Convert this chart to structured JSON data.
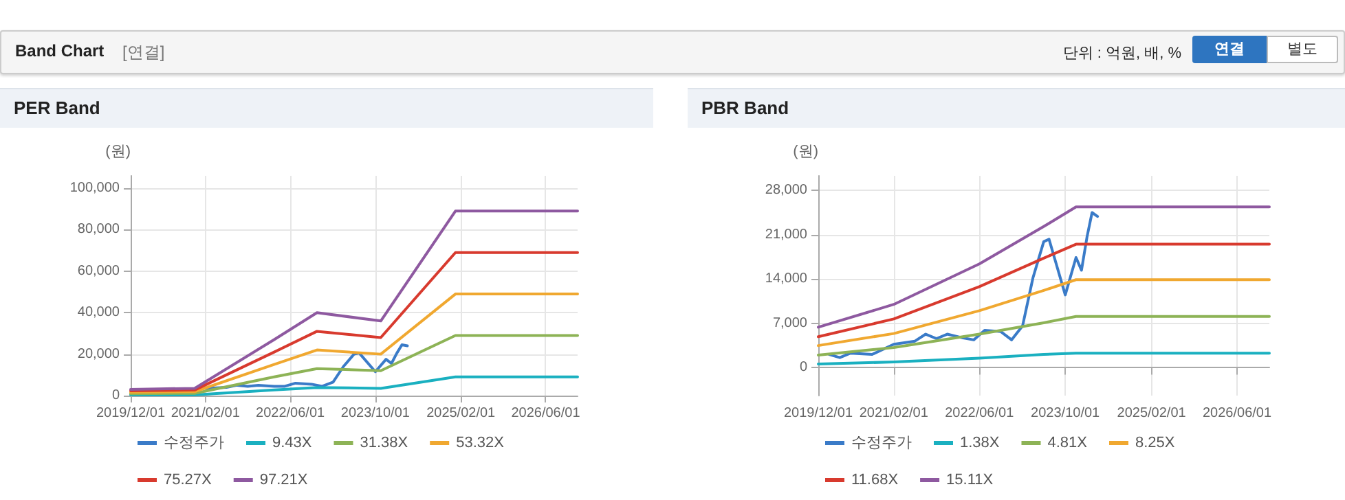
{
  "chart_data": [
    {
      "type": "line",
      "title": "PER Band",
      "ylabel": "(원)",
      "annotations": [
        "Band Chart",
        "[연결]",
        "단위 : 억원, 배, %",
        "연결",
        "별도"
      ],
      "xlim": [
        "2019-12-01",
        "2026-12-01"
      ],
      "xticks": [
        {
          "value": "2019-12-01",
          "label": "2019/12/01"
        },
        {
          "value": "2021-02-01",
          "label": "2021/02/01"
        },
        {
          "value": "2022-06-01",
          "label": "2022/06/01"
        },
        {
          "value": "2023-10-01",
          "label": "2023/10/01"
        },
        {
          "value": "2025-02-01",
          "label": "2025/02/01"
        },
        {
          "value": "2026-06-01",
          "label": "2026/06/01"
        }
      ],
      "ylim": [
        0,
        106000
      ],
      "yticks": [
        {
          "value": 0,
          "label": "0"
        },
        {
          "value": 20000,
          "label": "20,000"
        },
        {
          "value": 40000,
          "label": "40,000"
        },
        {
          "value": 60000,
          "label": "60,000"
        },
        {
          "value": 80000,
          "label": "80,000"
        },
        {
          "value": 100000,
          "label": "100,000"
        }
      ],
      "grid": true,
      "legend": "bottom",
      "line_style": "solid",
      "series": [
        {
          "name": "수정주가",
          "color": "#3a7bc8",
          "x": [
            "2021-02",
            "2021-06",
            "2021-08",
            "2021-10",
            "2021-12",
            "2022-03",
            "2022-05",
            "2022-07",
            "2022-10",
            "2022-12",
            "2023-02",
            "2023-04",
            "2023-06",
            "2023-07",
            "2023-10",
            "2023-12",
            "2024-01",
            "2024-02",
            "2024-03",
            "2024-04"
          ],
          "values": [
            3500,
            4000,
            5000,
            4500,
            5000,
            4500,
            4500,
            6000,
            5500,
            4500,
            6500,
            14000,
            20000,
            20500,
            11500,
            17500,
            15500,
            20500,
            24500,
            24000
          ]
        },
        {
          "name": "9.43X",
          "color": "#1ab0c0",
          "x": [
            "2019-12",
            "2020-12",
            "2022-03",
            "2022-11",
            "2023-11",
            "2025-01",
            "2026-12"
          ],
          "values": [
            300,
            300,
            2700,
            3900,
            3500,
            9000,
            9000
          ]
        },
        {
          "name": "31.38X",
          "color": "#8db356",
          "x": [
            "2019-12",
            "2020-12",
            "2022-03",
            "2022-11",
            "2023-11",
            "2025-01",
            "2026-12"
          ],
          "values": [
            900,
            1100,
            9000,
            13000,
            12000,
            29000,
            29000
          ]
        },
        {
          "name": "53.32X",
          "color": "#f0a830",
          "x": [
            "2019-12",
            "2020-12",
            "2022-03",
            "2022-11",
            "2023-11",
            "2025-01",
            "2026-12"
          ],
          "values": [
            1600,
            1900,
            15000,
            22000,
            20000,
            49000,
            49000
          ]
        },
        {
          "name": "75.27X",
          "color": "#d83a2e",
          "x": [
            "2019-12",
            "2020-12",
            "2022-03",
            "2022-11",
            "2023-11",
            "2025-01",
            "2026-12"
          ],
          "values": [
            2300,
            2700,
            21000,
            31000,
            28000,
            69000,
            69000
          ]
        },
        {
          "name": "97.21X",
          "color": "#8e59a0",
          "x": [
            "2019-12",
            "2020-12",
            "2022-03",
            "2022-11",
            "2023-11",
            "2025-01",
            "2026-12"
          ],
          "values": [
            3000,
            3500,
            27000,
            40000,
            36000,
            89000,
            89000
          ]
        }
      ]
    },
    {
      "type": "line",
      "title": "PBR Band",
      "ylabel": "(원)",
      "xlim": [
        "2019-12-01",
        "2026-12-01"
      ],
      "xticks": [
        {
          "value": "2019-12-01",
          "label": "2019/12/01"
        },
        {
          "value": "2021-02-01",
          "label": "2021/02/01"
        },
        {
          "value": "2022-06-01",
          "label": "2022/06/01"
        },
        {
          "value": "2023-10-01",
          "label": "2023/10/01"
        },
        {
          "value": "2025-02-01",
          "label": "2025/02/01"
        },
        {
          "value": "2026-06-01",
          "label": "2026/06/01"
        }
      ],
      "ylim": [
        -4400,
        30300
      ],
      "yticks": [
        {
          "value": 0,
          "label": "0"
        },
        {
          "value": 7000,
          "label": "7,000"
        },
        {
          "value": 14000,
          "label": "14,000"
        },
        {
          "value": 21000,
          "label": "21,000"
        },
        {
          "value": 28000,
          "label": "28,000"
        }
      ],
      "grid": true,
      "legend": "bottom",
      "line_style": "solid",
      "series": [
        {
          "name": "수정주가",
          "color": "#3a7bc8",
          "x": [
            "2020-02",
            "2020-04",
            "2020-06",
            "2020-10",
            "2021-02",
            "2021-06",
            "2021-08",
            "2021-10",
            "2021-12",
            "2022-03",
            "2022-05",
            "2022-07",
            "2022-10",
            "2022-12",
            "2023-02",
            "2023-04",
            "2023-06",
            "2023-07",
            "2023-10",
            "2023-12",
            "2024-01",
            "2024-02",
            "2024-03",
            "2024-04"
          ],
          "values": [
            2100,
            1600,
            2300,
            2100,
            3700,
            4200,
            5300,
            4600,
            5300,
            4700,
            4400,
            5900,
            5700,
            4400,
            6600,
            14200,
            19900,
            20300,
            11500,
            17400,
            15400,
            20600,
            24500,
            23900
          ]
        },
        {
          "name": "1.38X",
          "color": "#1ab0c0",
          "x": [
            "2019-12",
            "2021-02",
            "2022-06",
            "2023-06",
            "2023-12",
            "2026-12"
          ],
          "values": [
            600,
            900,
            1500,
            2100,
            2300,
            2300
          ]
        },
        {
          "name": "4.81X",
          "color": "#8db356",
          "x": [
            "2019-12",
            "2021-02",
            "2022-06",
            "2023-06",
            "2023-12",
            "2026-12"
          ],
          "values": [
            2000,
            3200,
            5300,
            7100,
            8100,
            8100
          ]
        },
        {
          "name": "8.25X",
          "color": "#f0a830",
          "x": [
            "2019-12",
            "2021-02",
            "2022-06",
            "2023-06",
            "2023-12",
            "2026-12"
          ],
          "values": [
            3500,
            5400,
            9000,
            12200,
            13900,
            13900
          ]
        },
        {
          "name": "11.68X",
          "color": "#d83a2e",
          "x": [
            "2019-12",
            "2021-02",
            "2022-06",
            "2023-06",
            "2023-12",
            "2026-12"
          ],
          "values": [
            4900,
            7700,
            12800,
            17300,
            19500,
            19500
          ]
        },
        {
          "name": "15.11X",
          "color": "#8e59a0",
          "x": [
            "2019-12",
            "2021-02",
            "2022-06",
            "2023-06",
            "2023-12",
            "2026-12"
          ],
          "values": [
            6400,
            10000,
            16400,
            22300,
            25400,
            25400
          ]
        }
      ]
    }
  ]
}
